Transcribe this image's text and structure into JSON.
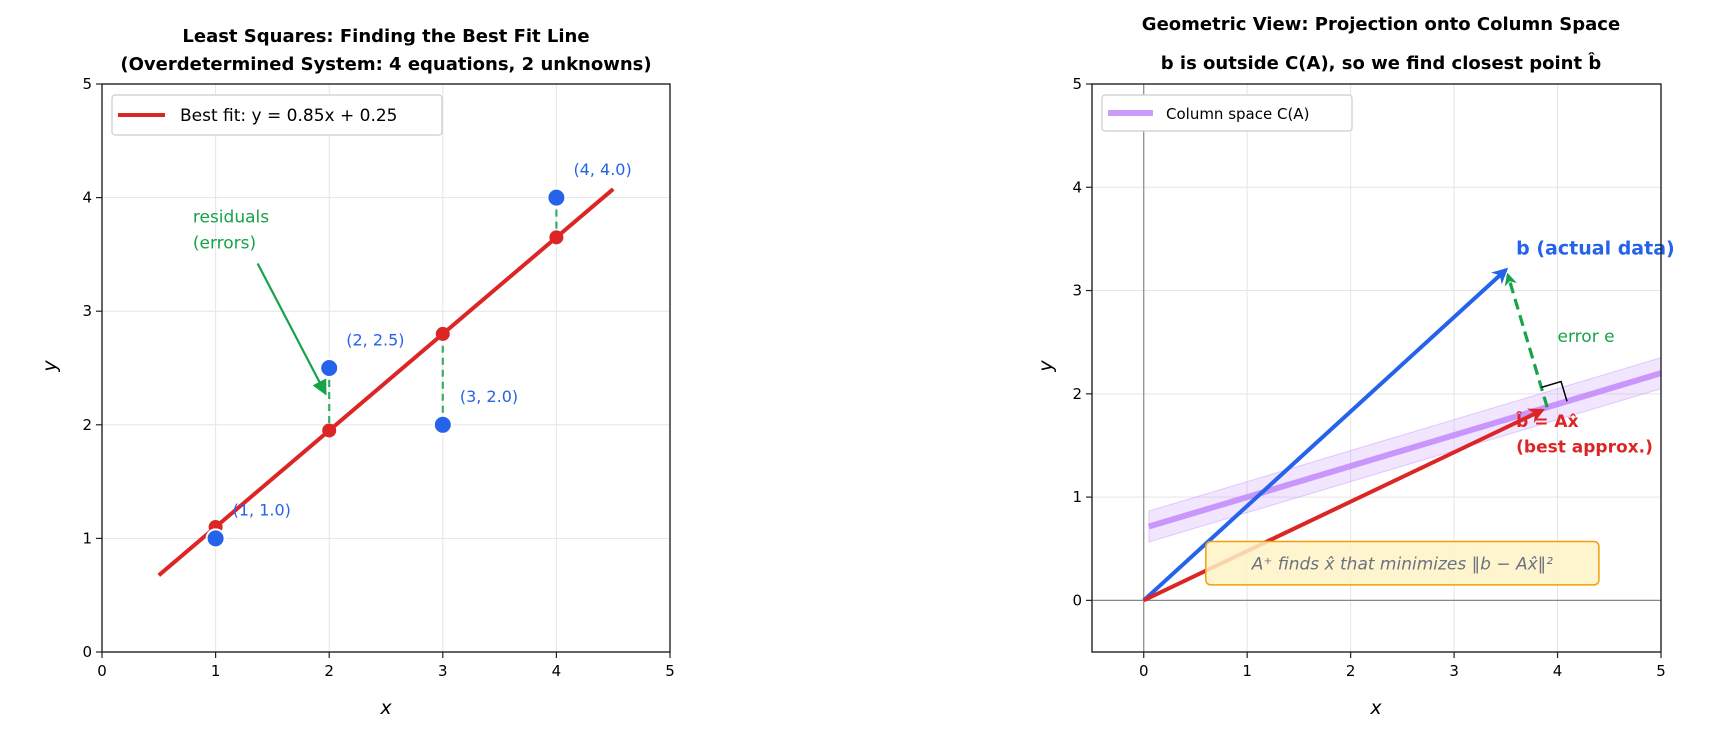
{
  "chart_data": [
    {
      "type": "scatter",
      "title": [
        "Least Squares: Finding the Best Fit Line",
        "(Overdetermined System: 4 equations, 2 unknowns)"
      ],
      "xlabel": "x",
      "ylabel": "y",
      "xlim": [
        0,
        5
      ],
      "ylim": [
        0,
        5
      ],
      "xticks": [
        0,
        1,
        2,
        3,
        4,
        5
      ],
      "yticks": [
        0,
        1,
        2,
        3,
        4,
        5
      ],
      "grid": true,
      "legend_placement": "upper-left",
      "fit_line": {
        "name": "Best fit: y = 0.85x + 0.25",
        "slope": 0.85,
        "intercept": 0.25,
        "x_range": [
          0.5,
          4.5
        ],
        "color": "#dc2626"
      },
      "points": {
        "x": [
          1,
          2,
          3,
          4
        ],
        "y": [
          1.0,
          2.5,
          2.0,
          4.0
        ],
        "labels": [
          "(1, 1.0)",
          "(2, 2.5)",
          "(3, 2.0)",
          "(4, 4.0)"
        ],
        "color": "#2563eb"
      },
      "fitted_points": {
        "x": [
          1,
          2,
          3,
          4
        ],
        "y": [
          1.1,
          1.95,
          2.8,
          3.65
        ],
        "color": "#dc2626"
      },
      "residual_color": "#16a34a",
      "annotation": {
        "text": [
          "residuals",
          "(errors)"
        ],
        "color": "#16a34a"
      }
    },
    {
      "type": "vector",
      "title": [
        "Geometric View: Projection onto Column Space",
        "b is outside C(A), so we find closest point b̂"
      ],
      "xlabel": "x",
      "ylabel": "y",
      "xlim": [
        -0.5,
        5
      ],
      "ylim": [
        -0.5,
        5
      ],
      "xticks": [
        0,
        1,
        2,
        3,
        4,
        5
      ],
      "yticks": [
        0,
        1,
        2,
        3,
        4,
        5
      ],
      "grid": true,
      "legend_placement": "upper-left",
      "column_space": {
        "name": "Column space C(A)",
        "slope": 0.3,
        "intercept": 0.7,
        "x_range": [
          0.05,
          5
        ],
        "color": "#c084fc"
      },
      "vector_b": {
        "x": 3.5,
        "y": 3.2,
        "label": "b (actual data)",
        "color": "#2563eb"
      },
      "vector_bhat": {
        "x": 3.9,
        "y": 1.87,
        "label": [
          "b̂ = Ax̂",
          "(best approx.)"
        ],
        "color": "#dc2626"
      },
      "error": {
        "label": "error e",
        "color": "#16a34a"
      },
      "note": {
        "text": "A⁺ finds x̂ that minimizes ‖b − Ax̂‖²",
        "fill": "#fef3c7",
        "border": "#f59e0b"
      }
    }
  ]
}
